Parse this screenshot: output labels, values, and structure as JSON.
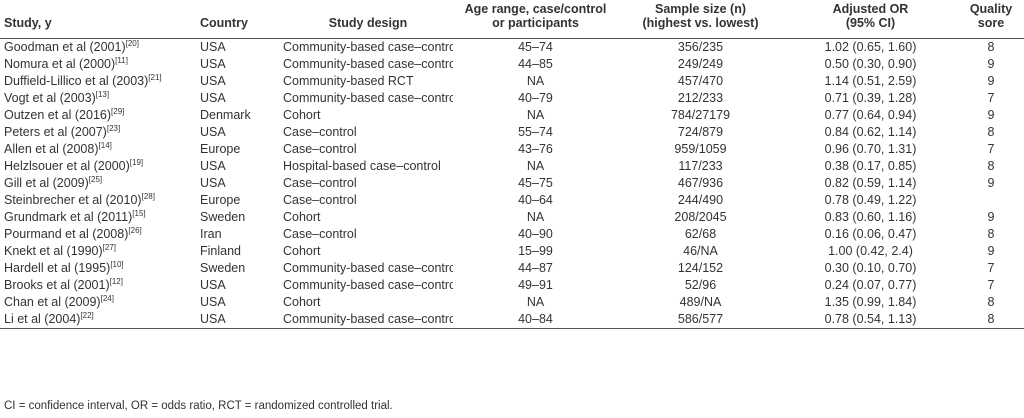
{
  "headers": {
    "study": "Study, y",
    "country": "Country",
    "design": "Study design",
    "age_line1": "Age range, case/control",
    "age_line2": "or participants",
    "sample_line1": "Sample size (n)",
    "sample_line2": "(highest vs. lowest)",
    "or_line1": "Adjusted OR",
    "or_line2": "(95% CI)",
    "quality_line1": "Quality",
    "quality_line2": "sore"
  },
  "rows": [
    {
      "study": "Goodman et al (2001)",
      "ref": "[20]",
      "country": "USA",
      "design": "Community-based case–control",
      "age": "45–74",
      "sample": "356/235",
      "or": "1.02 (0.65, 1.60)",
      "quality": "8"
    },
    {
      "study": "Nomura et al (2000)",
      "ref": "[11]",
      "country": "USA",
      "design": "Community-based case–control",
      "age": "44–85",
      "sample": "249/249",
      "or": "0.50 (0.30, 0.90)",
      "quality": "9"
    },
    {
      "study": "Duffield-Lillico et al (2003)",
      "ref": "[21]",
      "country": "USA",
      "design": "Community-based RCT",
      "age": "NA",
      "sample": "457/470",
      "or": "1.14 (0.51, 2.59)",
      "quality": "9"
    },
    {
      "study": "Vogt et al (2003)",
      "ref": "[13]",
      "country": "USA",
      "design": "Community-based case–control",
      "age": "40–79",
      "sample": "212/233",
      "or": "0.71 (0.39, 1.28)",
      "quality": "7"
    },
    {
      "study": "Outzen et al (2016)",
      "ref": "[29]",
      "country": "Denmark",
      "design": "Cohort",
      "age": "NA",
      "sample": "784/27179",
      "or": "0.77 (0.64, 0.94)",
      "quality": "9"
    },
    {
      "study": "Peters et al (2007)",
      "ref": "[23]",
      "country": "USA",
      "design": "Case–control",
      "age": "55–74",
      "sample": "724/879",
      "or": "0.84 (0.62, 1.14)",
      "quality": "8"
    },
    {
      "study": "Allen et al (2008)",
      "ref": "[14]",
      "country": "Europe",
      "design": "Case–control",
      "age": "43–76",
      "sample": "959/1059",
      "or": "0.96 (0.70, 1.31)",
      "quality": "7"
    },
    {
      "study": "Helzlsouer et al (2000)",
      "ref": "[19]",
      "country": "USA",
      "design": "Hospital-based case–control",
      "age": "NA",
      "sample": "117/233",
      "or": "0.38 (0.17, 0.85)",
      "quality": "8"
    },
    {
      "study": "Gill et al (2009)",
      "ref": "[25]",
      "country": "USA",
      "design": "Case–control",
      "age": "45–75",
      "sample": "467/936",
      "or": "0.82 (0.59, 1.14)",
      "quality": "9"
    },
    {
      "study": "Steinbrecher et al (2010)",
      "ref": "[28]",
      "country": "Europe",
      "design": "Case–control",
      "age": "40–64",
      "sample": "244/490",
      "or": "0.78 (0.49, 1.22)",
      "quality": ""
    },
    {
      "study": "Grundmark et al (2011)",
      "ref": "[15]",
      "country": "Sweden",
      "design": "Cohort",
      "age": "NA",
      "sample": "208/2045",
      "or": "0.83 (0.60, 1.16)",
      "quality": "9"
    },
    {
      "study": "Pourmand et al (2008)",
      "ref": "[26]",
      "country": "Iran",
      "design": "Case–control",
      "age": "40–90",
      "sample": "62/68",
      "or": "0.16 (0.06, 0.47)",
      "quality": "8"
    },
    {
      "study": "Knekt et al (1990)",
      "ref": "[27]",
      "country": "Finland",
      "design": "Cohort",
      "age": "15–99",
      "sample": "46/NA",
      "or": "1.00 (0.42, 2.4)",
      "quality": "9"
    },
    {
      "study": "Hardell et al (1995)",
      "ref": "[10]",
      "country": "Sweden",
      "design": "Community-based case–control",
      "age": "44–87",
      "sample": "124/152",
      "or": "0.30 (0.10, 0.70)",
      "quality": "7"
    },
    {
      "study": "Brooks et al (2001)",
      "ref": "[12]",
      "country": "USA",
      "design": "Community-based case–control",
      "age": "49–91",
      "sample": "52/96",
      "or": "0.24 (0.07, 0.77)",
      "quality": "7"
    },
    {
      "study": "Chan et al (2009)",
      "ref": "[24]",
      "country": "USA",
      "design": "Cohort",
      "age": "NA",
      "sample": "489/NA",
      "or": "1.35 (0.99, 1.84)",
      "quality": "8"
    },
    {
      "study": "Li et al (2004)",
      "ref": "[22]",
      "country": "USA",
      "design": "Community-based case–control",
      "age": "40–84",
      "sample": "586/577",
      "or": "0.78 (0.54, 1.13)",
      "quality": "8"
    }
  ],
  "footnote": "CI = confidence interval, OR = odds ratio, RCT = randomized controlled trial."
}
